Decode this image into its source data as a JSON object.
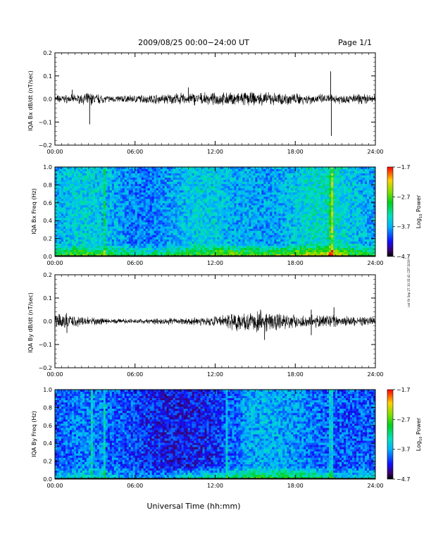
{
  "header": {
    "title": "2009/08/25  00:00−24:00 UT",
    "page": "Page 1/1"
  },
  "side_note": "nst Fri Sep 27 10:35:41 CDT 2019",
  "xlabel": "Universal Time (hh:mm)",
  "chart_data": [
    {
      "type": "line",
      "ylabel": "IQA Bx dB/dt (nT/sec)",
      "xlim": [
        0,
        24
      ],
      "ylim": [
        -0.2,
        0.2
      ],
      "x_ticks": [
        "00:00",
        "06:00",
        "12:00",
        "18:00",
        "24:00"
      ],
      "y_ticks": [
        "0.2",
        "0.1",
        "0.0",
        "−0.1",
        "−0.2"
      ],
      "series": [
        {
          "amplitude_envelope": [
            [
              0,
              0.012
            ],
            [
              2,
              0.014
            ],
            [
              2.6,
              0.02
            ],
            [
              4,
              0.01
            ],
            [
              6,
              0.012
            ],
            [
              8,
              0.015
            ],
            [
              10,
              0.02
            ],
            [
              12,
              0.018
            ],
            [
              14,
              0.022
            ],
            [
              16,
              0.02
            ],
            [
              18,
              0.018
            ],
            [
              20.3,
              0.015
            ],
            [
              24,
              0.015
            ]
          ],
          "spikes": [
            [
              2.6,
              -0.11
            ],
            [
              1.3,
              0.04
            ],
            [
              10,
              0.05
            ],
            [
              20.65,
              0.12
            ],
            [
              20.7,
              -0.16
            ]
          ]
        }
      ]
    },
    {
      "type": "heatmap",
      "ylabel": "IQA Bx Freq (Hz)",
      "xlim": [
        0,
        24
      ],
      "ylim": [
        0,
        1.0
      ],
      "x_ticks": [
        "00:00",
        "06:00",
        "12:00",
        "18:00",
        "24:00"
      ],
      "y_ticks": [
        "1.0",
        "0.8",
        "0.6",
        "0.4",
        "0.2",
        "0.0"
      ],
      "colorbar": {
        "label": "Log10 Power",
        "label_main": "Log",
        "label_sub": "10",
        "label_rest": " Power",
        "range": [
          -4.7,
          -1.7
        ],
        "ticks": [
          "−1.7",
          "−2.7",
          "−3.7",
          "−4.7"
        ]
      },
      "bright_lines_hr": [
        3.7,
        20.7,
        20.8
      ]
    },
    {
      "type": "line",
      "ylabel": "IQA By dB/dt (nT/sec)",
      "xlim": [
        0,
        24
      ],
      "ylim": [
        -0.2,
        0.2
      ],
      "x_ticks": [
        "00:00",
        "06:00",
        "12:00",
        "18:00",
        "24:00"
      ],
      "y_ticks": [
        "0.2",
        "0.1",
        "0.0",
        "−0.1",
        "−0.2"
      ],
      "series": [
        {
          "amplitude_envelope": [
            [
              0,
              0.02
            ],
            [
              1,
              0.025
            ],
            [
              2,
              0.015
            ],
            [
              4,
              0.008
            ],
            [
              6,
              0.007
            ],
            [
              8,
              0.01
            ],
            [
              10,
              0.012
            ],
            [
              12,
              0.015
            ],
            [
              13,
              0.025
            ],
            [
              15,
              0.035
            ],
            [
              16,
              0.03
            ],
            [
              18,
              0.02
            ],
            [
              20,
              0.02
            ],
            [
              22,
              0.015
            ],
            [
              24,
              0.015
            ]
          ],
          "spikes": [
            [
              0.9,
              -0.05
            ],
            [
              15.4,
              0.05
            ],
            [
              15.7,
              -0.08
            ],
            [
              19.2,
              0.05
            ],
            [
              19.2,
              -0.06
            ],
            [
              20.9,
              0.06
            ]
          ]
        }
      ]
    },
    {
      "type": "heatmap",
      "ylabel": "IQA By Freq (Hz)",
      "xlim": [
        0,
        24
      ],
      "ylim": [
        0,
        1.0
      ],
      "x_ticks": [
        "00:00",
        "06:00",
        "12:00",
        "18:00",
        "24:00"
      ],
      "y_ticks": [
        "1.0",
        "0.8",
        "0.6",
        "0.4",
        "0.2",
        "0.0"
      ],
      "colorbar": {
        "label": "Log10 Power",
        "label_main": "Log",
        "label_sub": "10",
        "label_rest": " Power",
        "range": [
          -4.7,
          -1.7
        ],
        "ticks": [
          "−1.7",
          "−2.7",
          "−3.7",
          "−4.7"
        ]
      },
      "bright_lines_hr": [
        2.8,
        3.7,
        12.9,
        20.7
      ]
    }
  ]
}
